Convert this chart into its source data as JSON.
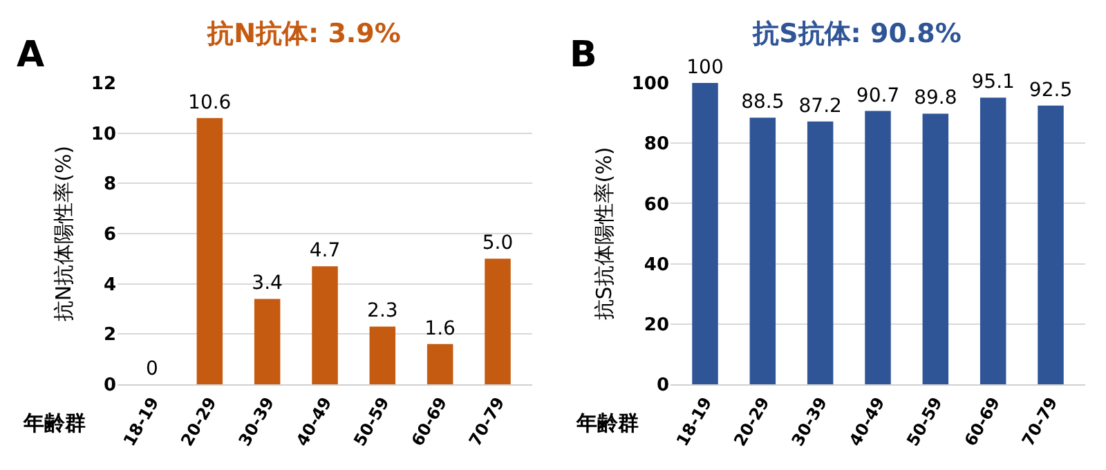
{
  "chart_data": [
    {
      "type": "bar",
      "title": "抗N抗体: 3.9%",
      "xlabel": "年齢群",
      "ylabel": "抗N抗体陽性率(%)",
      "annotations": [
        "A"
      ],
      "categories": [
        "18-19",
        "20-29",
        "30-39",
        "40-49",
        "50-59",
        "60-69",
        "70-79"
      ],
      "series": [
        {
          "color": "#c55a11",
          "values": [
            0,
            10.6,
            3.4,
            4.7,
            2.3,
            1.6,
            5.0
          ],
          "value_labels": [
            "0",
            "10.6",
            "3.4",
            "4.7",
            "2.3",
            "1.6",
            "5.0"
          ]
        }
      ],
      "ylim": [
        0,
        12
      ],
      "yticks": [
        0,
        2,
        4,
        6,
        8,
        10,
        12
      ],
      "grid": "y"
    },
    {
      "type": "bar",
      "title": "抗S抗体: 90.8%",
      "xlabel": "年齢群",
      "ylabel": "抗S抗体陽性率(%)",
      "annotations": [
        "B"
      ],
      "categories": [
        "18-19",
        "20-29",
        "30-39",
        "40-49",
        "50-59",
        "60-69",
        "70-79"
      ],
      "series": [
        {
          "color": "#2f5597",
          "values": [
            100,
            88.5,
            87.2,
            90.7,
            89.8,
            95.1,
            92.5
          ]
        }
      ],
      "ylim": [
        0,
        100
      ],
      "yticks": [
        0,
        20,
        40,
        60,
        80,
        100
      ],
      "grid": "y",
      "data_labels": true
    }
  ]
}
